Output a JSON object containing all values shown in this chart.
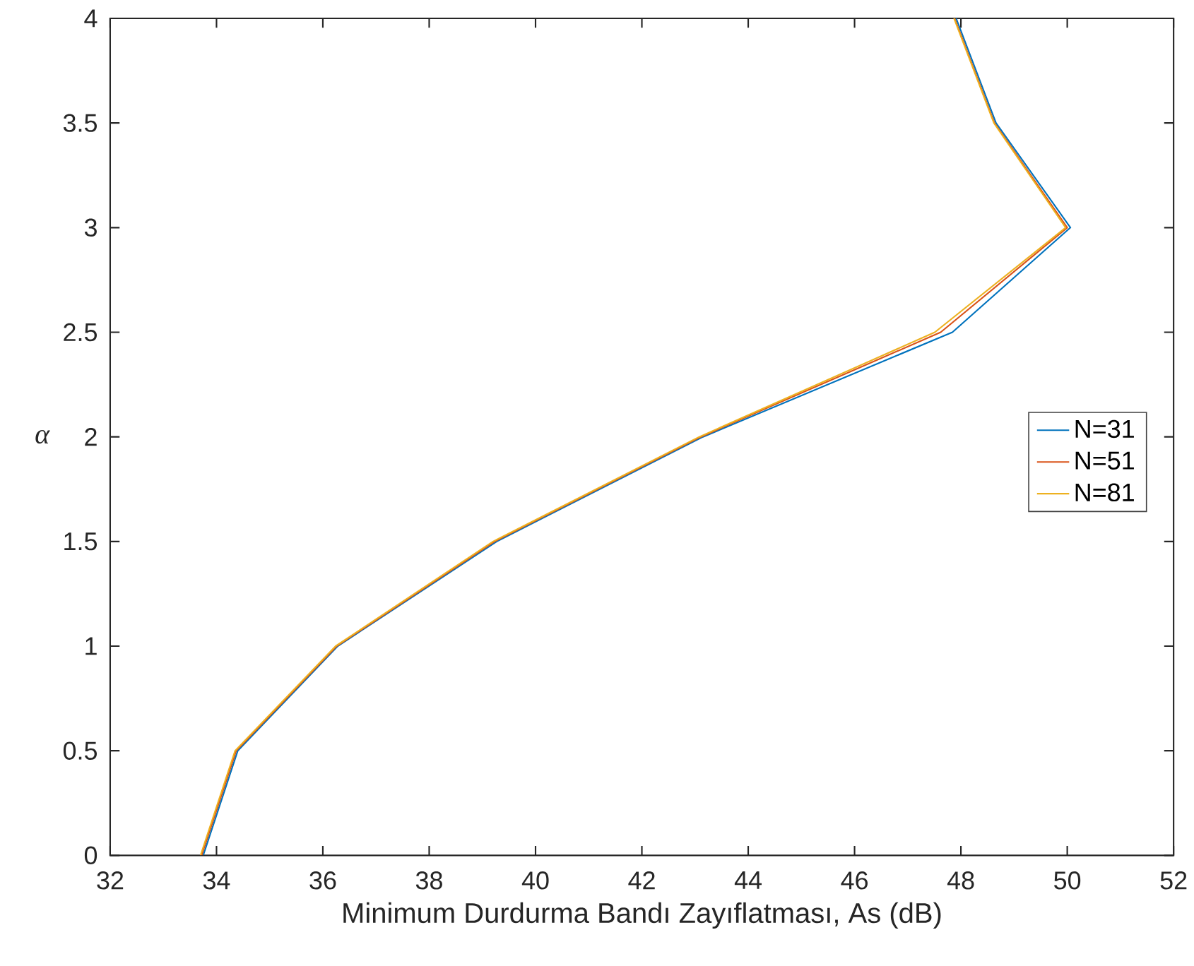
{
  "chart_data": {
    "type": "line",
    "xlabel": "Minimum Durdurma Bandı Zayıflatması, As (dB)",
    "ylabel": "α",
    "xlim": [
      32,
      52
    ],
    "xticks": [
      32,
      34,
      36,
      38,
      40,
      42,
      44,
      46,
      48,
      50,
      52
    ],
    "ylim": [
      0,
      4
    ],
    "yticks": [
      0,
      0.5,
      1,
      1.5,
      2,
      2.5,
      3,
      3.5,
      4
    ],
    "grid": false,
    "legend": "right",
    "marker": "none",
    "line_style": "solid",
    "series": [
      {
        "name": "N=31",
        "color": "#0072bd",
        "x": [
          33.75,
          34.4,
          36.28,
          39.27,
          43.15,
          47.84,
          50.06,
          48.66,
          47.91
        ],
        "values": [
          0,
          0.5,
          1,
          1.5,
          2,
          2.5,
          3,
          3.5,
          4
        ]
      },
      {
        "name": "N=51",
        "color": "#d95319",
        "x": [
          33.72,
          34.37,
          36.26,
          39.23,
          43.11,
          47.62,
          50.0,
          48.63,
          47.88
        ],
        "values": [
          0,
          0.5,
          1,
          1.5,
          2,
          2.5,
          3,
          3.5,
          4
        ]
      },
      {
        "name": "N=81",
        "color": "#edb120",
        "x": [
          33.7,
          34.35,
          36.24,
          39.2,
          43.08,
          47.51,
          49.97,
          48.62,
          47.87
        ],
        "values": [
          0,
          0.5,
          1,
          1.5,
          2,
          2.5,
          3,
          3.5,
          4
        ]
      }
    ]
  }
}
